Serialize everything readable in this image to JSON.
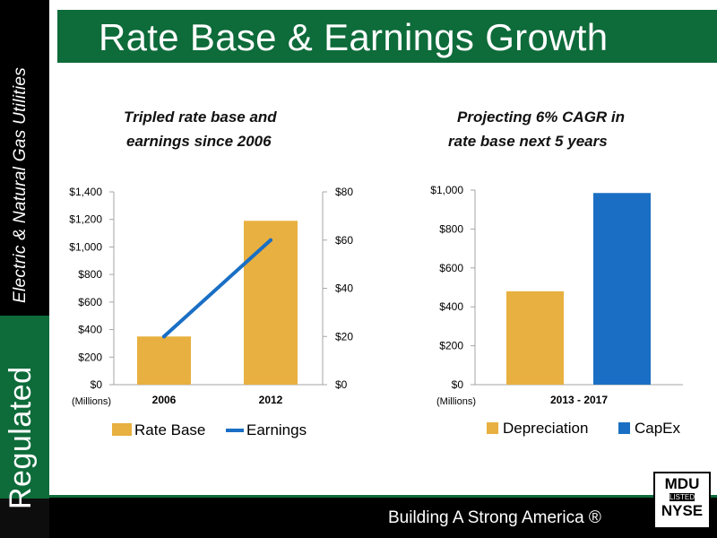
{
  "slide": {
    "title": "Rate Base & Earnings Growth",
    "side_label_small": "Electric & Natural Gas Utilities",
    "side_label_big": "Regulated",
    "footer": "Building A Strong America ®",
    "logo": {
      "line1": "MDU",
      "line2": "LISTED",
      "line3": "NYSE"
    },
    "colors": {
      "green": "#0e6b3a",
      "gold": "#e8b040",
      "blue": "#1a6fc4",
      "black": "#000000"
    }
  },
  "left_subtitle_lines": [
    "Tripled rate base and",
    "earnings since 2006"
  ],
  "right_subtitle_lines": [
    "Projecting 6% CAGR in",
    "rate base next 5 years"
  ],
  "chart_data": [
    {
      "type": "bar",
      "categories": [
        "2006",
        "2012"
      ],
      "series": [
        {
          "name": "Rate Base",
          "type": "bar",
          "axis": "left",
          "color": "#e8b040",
          "values": [
            350,
            1190
          ]
        },
        {
          "name": "Earnings",
          "type": "line",
          "axis": "right",
          "color": "#1a6fc4",
          "values": [
            20,
            60
          ]
        }
      ],
      "y_left": {
        "range": [
          0,
          1400
        ],
        "ticks": [
          "$0",
          "$200",
          "$400",
          "$600",
          "$800",
          "$1,000",
          "$1,200",
          "$1,400"
        ],
        "unit": "(Millions)"
      },
      "y_right": {
        "range": [
          0,
          80
        ],
        "ticks": [
          "$0",
          "$20",
          "$40",
          "$60",
          "$80"
        ]
      },
      "legend": "bottom",
      "grid": false
    },
    {
      "type": "bar",
      "categories": [
        "2013 - 2017"
      ],
      "series": [
        {
          "name": "Depreciation",
          "color": "#e8b040",
          "values": [
            480
          ]
        },
        {
          "name": "CapEx",
          "color": "#1a6fc4",
          "values": [
            985
          ]
        }
      ],
      "y_left": {
        "range": [
          0,
          1000
        ],
        "ticks": [
          "$0",
          "$200",
          "$400",
          "$600",
          "$800",
          "$1,000"
        ],
        "unit": "(Millions)"
      },
      "legend": "bottom",
      "grid": false
    }
  ]
}
